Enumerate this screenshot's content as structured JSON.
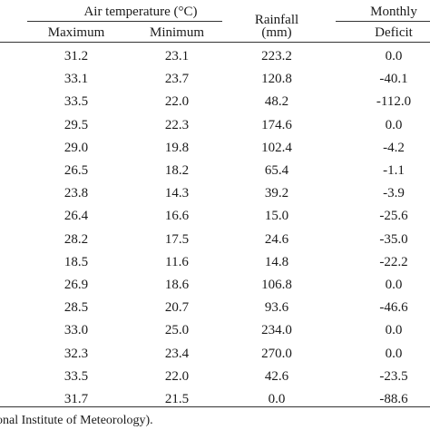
{
  "table": {
    "headers": {
      "air_temperature": "Air temperature (°C)",
      "maximum": "Maximum",
      "minimum": "Minimum",
      "rainfall_line1": "Rainfall",
      "rainfall_line2": "(mm)",
      "monthly": "Monthly",
      "deficit": "Deficit"
    },
    "rows": [
      [
        "31.2",
        "23.1",
        "223.2",
        "0.0"
      ],
      [
        "33.1",
        "23.7",
        "120.8",
        "-40.1"
      ],
      [
        "33.5",
        "22.0",
        "48.2",
        "-112.0"
      ],
      [
        "29.5",
        "22.3",
        "174.6",
        "0.0"
      ],
      [
        "29.0",
        "19.8",
        "102.4",
        "-4.2"
      ],
      [
        "26.5",
        "18.2",
        "65.4",
        "-1.1"
      ],
      [
        "23.8",
        "14.3",
        "39.2",
        "-3.9"
      ],
      [
        "26.4",
        "16.6",
        "15.0",
        "-25.6"
      ],
      [
        "28.2",
        "17.5",
        "24.6",
        "-35.0"
      ],
      [
        "18.5",
        "11.6",
        "14.8",
        "-22.2"
      ],
      [
        "26.9",
        "18.6",
        "106.8",
        "0.0"
      ],
      [
        "28.5",
        "20.7",
        "93.6",
        "-46.6"
      ],
      [
        "33.0",
        "25.0",
        "234.0",
        "0.0"
      ],
      [
        "32.3",
        "23.4",
        "270.0",
        "0.0"
      ],
      [
        "33.5",
        "22.0",
        "42.6",
        "-23.5"
      ],
      [
        "31.7",
        "21.5",
        "0.0",
        "-88.6"
      ]
    ]
  },
  "footnote": "onal Institute of Meteorology)."
}
